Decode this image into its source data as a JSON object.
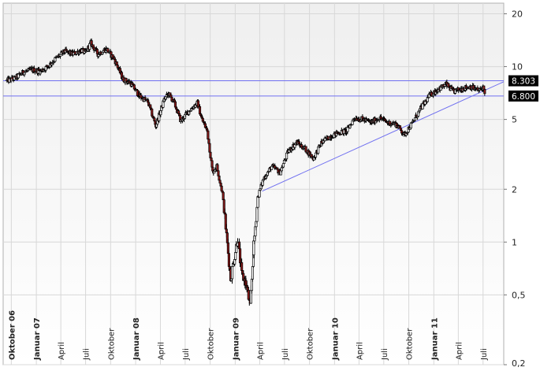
{
  "chart_data": {
    "type": "candlestick",
    "y_scale": "log",
    "ylim": [
      0.2,
      23
    ],
    "y_ticks": [
      {
        "value": 20,
        "label": "20"
      },
      {
        "value": 10,
        "label": "10"
      },
      {
        "value": 5,
        "label": "5"
      },
      {
        "value": 2,
        "label": "2"
      },
      {
        "value": 1,
        "label": "1"
      },
      {
        "value": 0.5,
        "label": "0,5"
      },
      {
        "value": 0.2,
        "label": "0,2"
      }
    ],
    "x_ticks": [
      {
        "date": "2006-10-01",
        "label": "Oktober 06",
        "major": true
      },
      {
        "date": "2007-01-01",
        "label": "Januar 07",
        "major": true
      },
      {
        "date": "2007-04-01",
        "label": "April",
        "major": false
      },
      {
        "date": "2007-07-01",
        "label": "Juli",
        "major": false
      },
      {
        "date": "2007-10-01",
        "label": "Oktober",
        "major": false
      },
      {
        "date": "2008-01-01",
        "label": "Januar 08",
        "major": true
      },
      {
        "date": "2008-04-01",
        "label": "April",
        "major": false
      },
      {
        "date": "2008-07-01",
        "label": "Juli",
        "major": false
      },
      {
        "date": "2008-10-01",
        "label": "Oktober",
        "major": false
      },
      {
        "date": "2009-01-01",
        "label": "Januar 09",
        "major": true
      },
      {
        "date": "2009-04-01",
        "label": "April",
        "major": false
      },
      {
        "date": "2009-07-01",
        "label": "Juli",
        "major": false
      },
      {
        "date": "2009-10-01",
        "label": "Oktober",
        "major": false
      },
      {
        "date": "2010-01-01",
        "label": "Januar 10",
        "major": true
      },
      {
        "date": "2010-04-01",
        "label": "April",
        "major": false
      },
      {
        "date": "2010-07-01",
        "label": "Juli",
        "major": false
      },
      {
        "date": "2010-10-01",
        "label": "Oktober",
        "major": false
      },
      {
        "date": "2011-01-01",
        "label": "Januar 11",
        "major": true
      },
      {
        "date": "2011-04-01",
        "label": "April",
        "major": false
      },
      {
        "date": "2011-07-01",
        "label": "Juli",
        "major": false
      }
    ],
    "xlim": [
      "2006-09-01",
      "2011-09-15"
    ],
    "price_path": [
      [
        "2006-09-15",
        8.3
      ],
      [
        "2006-10-15",
        8.6
      ],
      [
        "2006-11-15",
        9.3
      ],
      [
        "2006-12-15",
        9.6
      ],
      [
        "2007-01-15",
        9.4
      ],
      [
        "2007-02-15",
        10.1
      ],
      [
        "2007-03-15",
        11.2
      ],
      [
        "2007-04-15",
        12.2
      ],
      [
        "2007-05-15",
        11.8
      ],
      [
        "2007-06-15",
        12.4
      ],
      [
        "2007-07-01",
        12.0
      ],
      [
        "2007-07-20",
        13.6
      ],
      [
        "2007-08-15",
        11.8
      ],
      [
        "2007-09-15",
        12.6
      ],
      [
        "2007-10-15",
        11.0
      ],
      [
        "2007-11-15",
        8.5
      ],
      [
        "2007-12-15",
        8.0
      ],
      [
        "2008-01-15",
        6.8
      ],
      [
        "2008-02-15",
        6.3
      ],
      [
        "2008-03-15",
        4.6
      ],
      [
        "2008-04-15",
        6.5
      ],
      [
        "2008-05-01",
        7.0
      ],
      [
        "2008-05-20",
        6.3
      ],
      [
        "2008-06-15",
        4.9
      ],
      [
        "2008-07-15",
        5.6
      ],
      [
        "2008-08-15",
        6.2
      ],
      [
        "2008-09-01",
        5.0
      ],
      [
        "2008-09-20",
        4.3
      ],
      [
        "2008-10-10",
        2.5
      ],
      [
        "2008-10-25",
        2.7
      ],
      [
        "2008-11-15",
        1.9
      ],
      [
        "2008-12-15",
        0.62
      ],
      [
        "2009-01-10",
        1.05
      ],
      [
        "2009-01-25",
        0.65
      ],
      [
        "2009-02-10",
        0.58
      ],
      [
        "2009-02-25",
        0.42
      ],
      [
        "2009-03-10",
        0.95
      ],
      [
        "2009-03-25",
        1.8
      ],
      [
        "2009-04-15",
        2.3
      ],
      [
        "2009-05-15",
        2.7
      ],
      [
        "2009-06-15",
        2.5
      ],
      [
        "2009-07-15",
        3.3
      ],
      [
        "2009-08-15",
        3.7
      ],
      [
        "2009-09-15",
        3.4
      ],
      [
        "2009-10-15",
        3.0
      ],
      [
        "2009-11-15",
        3.7
      ],
      [
        "2009-12-15",
        4.0
      ],
      [
        "2010-01-15",
        4.2
      ],
      [
        "2010-02-15",
        4.3
      ],
      [
        "2010-03-15",
        5.1
      ],
      [
        "2010-04-15",
        5.0
      ],
      [
        "2010-05-15",
        4.8
      ],
      [
        "2010-06-15",
        5.1
      ],
      [
        "2010-07-15",
        4.8
      ],
      [
        "2010-08-15",
        4.7
      ],
      [
        "2010-09-15",
        4.1
      ],
      [
        "2010-10-15",
        4.8
      ],
      [
        "2010-11-15",
        5.8
      ],
      [
        "2010-12-15",
        6.8
      ],
      [
        "2011-01-15",
        7.4
      ],
      [
        "2011-02-15",
        7.9
      ],
      [
        "2011-03-15",
        7.2
      ],
      [
        "2011-04-15",
        7.5
      ],
      [
        "2011-05-15",
        7.7
      ],
      [
        "2011-06-15",
        7.3
      ],
      [
        "2011-07-01",
        7.6
      ],
      [
        "2011-07-10",
        7.0
      ]
    ],
    "horizontal_lines": [
      {
        "value": 8.303,
        "label": "8.303"
      },
      {
        "value": 6.8,
        "label": "6.800"
      }
    ],
    "trendlines": [
      {
        "from": [
          "2009-04-10",
          1.95
        ],
        "to": [
          "2011-09-15",
          8.2
        ]
      }
    ],
    "grid": true,
    "colors": {
      "up_body": "#ffffff",
      "down_body": "#8b1a1a",
      "wick": "#000000",
      "reference_line": "#7070f0",
      "grid": "#d8d8d8",
      "plot_background_top": "#f2f2f2",
      "plot_background_bottom": "#ffffff",
      "label_box": "#000000",
      "label_text": "#ffffff"
    }
  }
}
